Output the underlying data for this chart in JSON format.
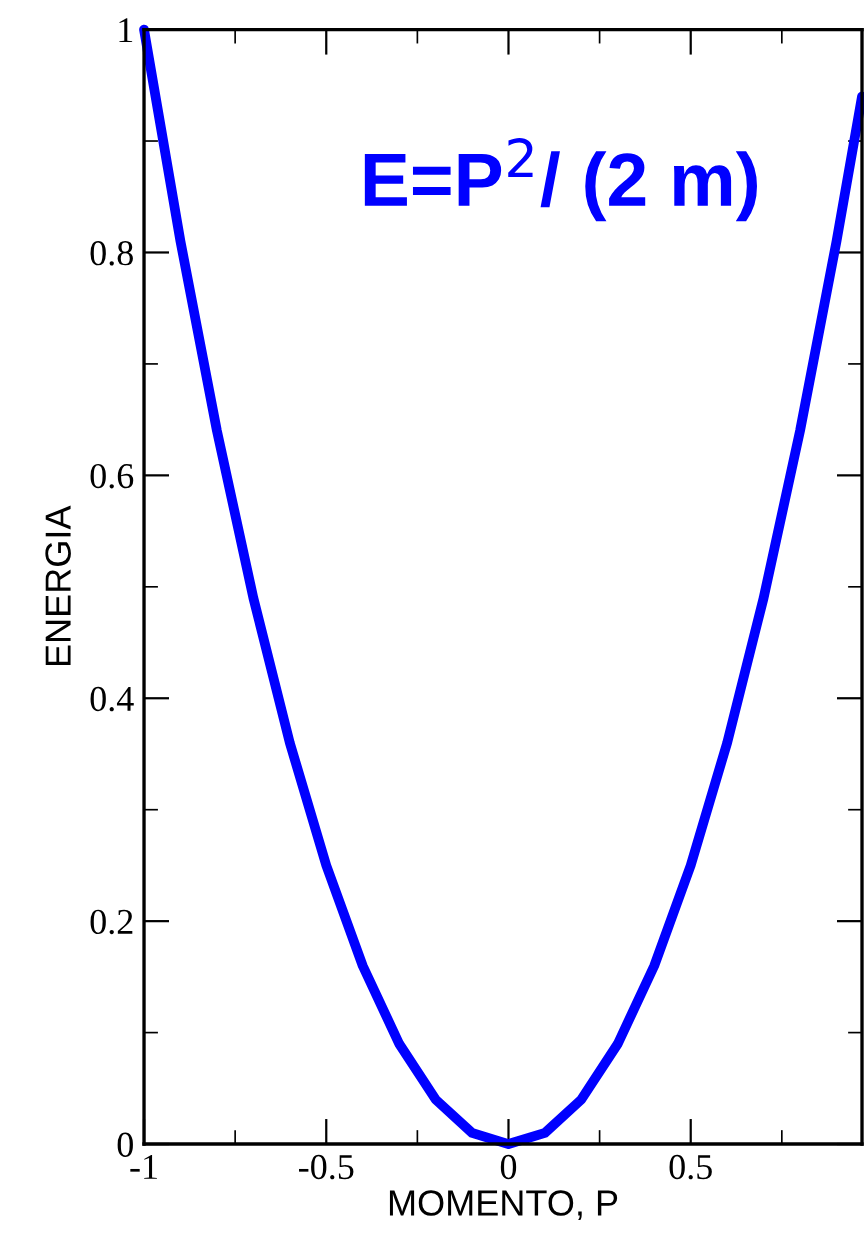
{
  "chart_data": {
    "type": "line",
    "xlabel": "MOMENTO, P",
    "ylabel": "ENERGIA",
    "annotations": [
      "E=P$^{2}$/ (2 m)"
    ],
    "x": [
      -1,
      -0.9,
      -0.8,
      -0.7,
      -0.6,
      -0.5,
      -0.4,
      -0.3,
      -0.2,
      -0.1,
      0,
      0.1,
      0.2,
      0.3,
      0.4,
      0.5,
      0.6,
      0.7,
      0.8,
      0.9,
      0.97
    ],
    "series": [
      {
        "color": "#0000ff",
        "values": [
          1,
          0.81,
          0.64,
          0.49,
          0.36,
          0.25,
          0.16,
          0.09,
          0.04,
          0.01,
          0,
          0.01,
          0.04,
          0.09,
          0.16,
          0.25,
          0.36,
          0.49,
          0.64,
          0.81,
          0.94
        ]
      }
    ],
    "xlim": [
      -1,
      0.97
    ],
    "ylim": [
      0,
      1
    ],
    "xticks": [
      -1,
      -0.5,
      0,
      0.5
    ],
    "yticks": [
      0,
      0.2,
      0.4,
      0.6,
      0.8,
      1
    ],
    "grid": false,
    "legend": false,
    "marker": "none",
    "line_style": "solid"
  }
}
